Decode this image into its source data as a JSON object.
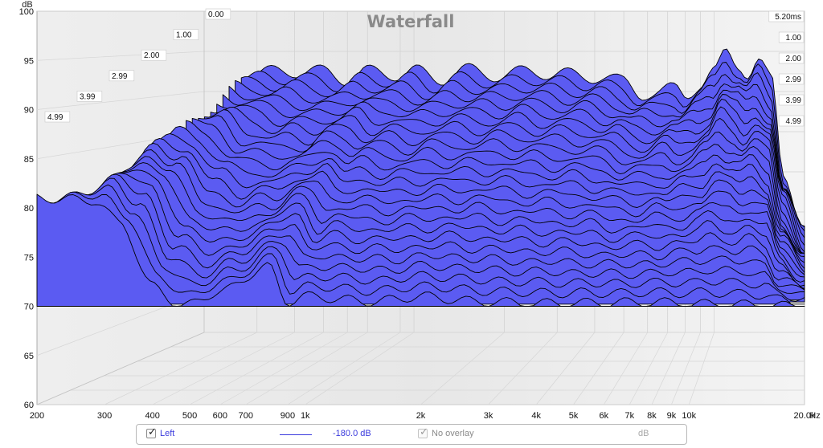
{
  "chart_data": {
    "type": "waterfall",
    "title": "Waterfall",
    "ylabel": "dB",
    "xlabel": "Hz",
    "ylim": [
      60,
      100
    ],
    "xlim": [
      200,
      20000
    ],
    "x_scale": "log",
    "y_ticks": [
      "60",
      "65",
      "70",
      "75",
      "80",
      "85",
      "90",
      "95",
      "100"
    ],
    "x_ticks": [
      {
        "label": "200",
        "value": 200
      },
      {
        "label": "300",
        "value": 300
      },
      {
        "label": "400",
        "value": 400
      },
      {
        "label": "500",
        "value": 500
      },
      {
        "label": "600",
        "value": 600
      },
      {
        "label": "700",
        "value": 700
      },
      {
        "label": "900",
        "value": 900
      },
      {
        "label": "1k",
        "value": 1000
      },
      {
        "label": "2k",
        "value": 2000
      },
      {
        "label": "3k",
        "value": 3000
      },
      {
        "label": "4k",
        "value": 4000
      },
      {
        "label": "5k",
        "value": 5000
      },
      {
        "label": "6k",
        "value": 6000
      },
      {
        "label": "7k",
        "value": 7000
      },
      {
        "label": "8k",
        "value": 8000
      },
      {
        "label": "9k",
        "value": 9000
      },
      {
        "label": "10k",
        "value": 10000
      },
      {
        "label": "20.0k",
        "value": 20000
      }
    ],
    "time_labels_left": [
      "0.00",
      "1.00",
      "2.00",
      "2.99",
      "3.99",
      "4.99"
    ],
    "time_labels_right": [
      "5.20ms",
      "1.00",
      "2.00",
      "2.99",
      "3.99",
      "4.99"
    ],
    "time_range_ms": [
      0,
      5.2
    ],
    "grid": true,
    "floor_db": 70,
    "fill_color": "#5b5bf2",
    "line_color": "#000000",
    "back_slice_db": [
      [
        200,
        76.5
      ],
      [
        290,
        92.2
      ],
      [
        400,
        92.6
      ],
      [
        500,
        92.4
      ],
      [
        600,
        91.6
      ],
      [
        700,
        92.4
      ],
      [
        900,
        92.2
      ],
      [
        1000,
        92.5
      ],
      [
        1200,
        91.6
      ],
      [
        1500,
        92.6
      ],
      [
        2000,
        92.0
      ],
      [
        2500,
        92.6
      ],
      [
        3000,
        92.1
      ],
      [
        4000,
        91.9
      ],
      [
        5000,
        91.2
      ],
      [
        5800,
        89.8
      ],
      [
        6500,
        89.6
      ],
      [
        7500,
        90.5
      ],
      [
        8000,
        89.8
      ],
      [
        9000,
        90.8
      ],
      [
        10000,
        92.2
      ],
      [
        11000,
        95.0
      ],
      [
        12000,
        93.6
      ],
      [
        13000,
        92.2
      ],
      [
        14000,
        93.6
      ],
      [
        15500,
        91.4
      ],
      [
        17000,
        80.0
      ],
      [
        20000,
        73.0
      ]
    ],
    "front_slice_db": [
      [
        200,
        81.0
      ],
      [
        280,
        80.8
      ],
      [
        330,
        78.5
      ],
      [
        400,
        72.0
      ],
      [
        480,
        70.0
      ],
      [
        600,
        71.5
      ],
      [
        800,
        74.0
      ],
      [
        900,
        70.5
      ],
      [
        1000,
        71.0
      ],
      [
        1500,
        70.5
      ],
      [
        2000,
        71.0
      ],
      [
        2800,
        70.5
      ],
      [
        4000,
        70.3
      ],
      [
        8000,
        70.4
      ],
      [
        12000,
        70.2
      ],
      [
        20000,
        70.0
      ]
    ]
  },
  "legend": {
    "left_label": "Left",
    "level_label": "-180.0 dB",
    "overlay_label": "No overlay",
    "overlay_unit": "dB",
    "series_color": "#3b3bdd"
  }
}
